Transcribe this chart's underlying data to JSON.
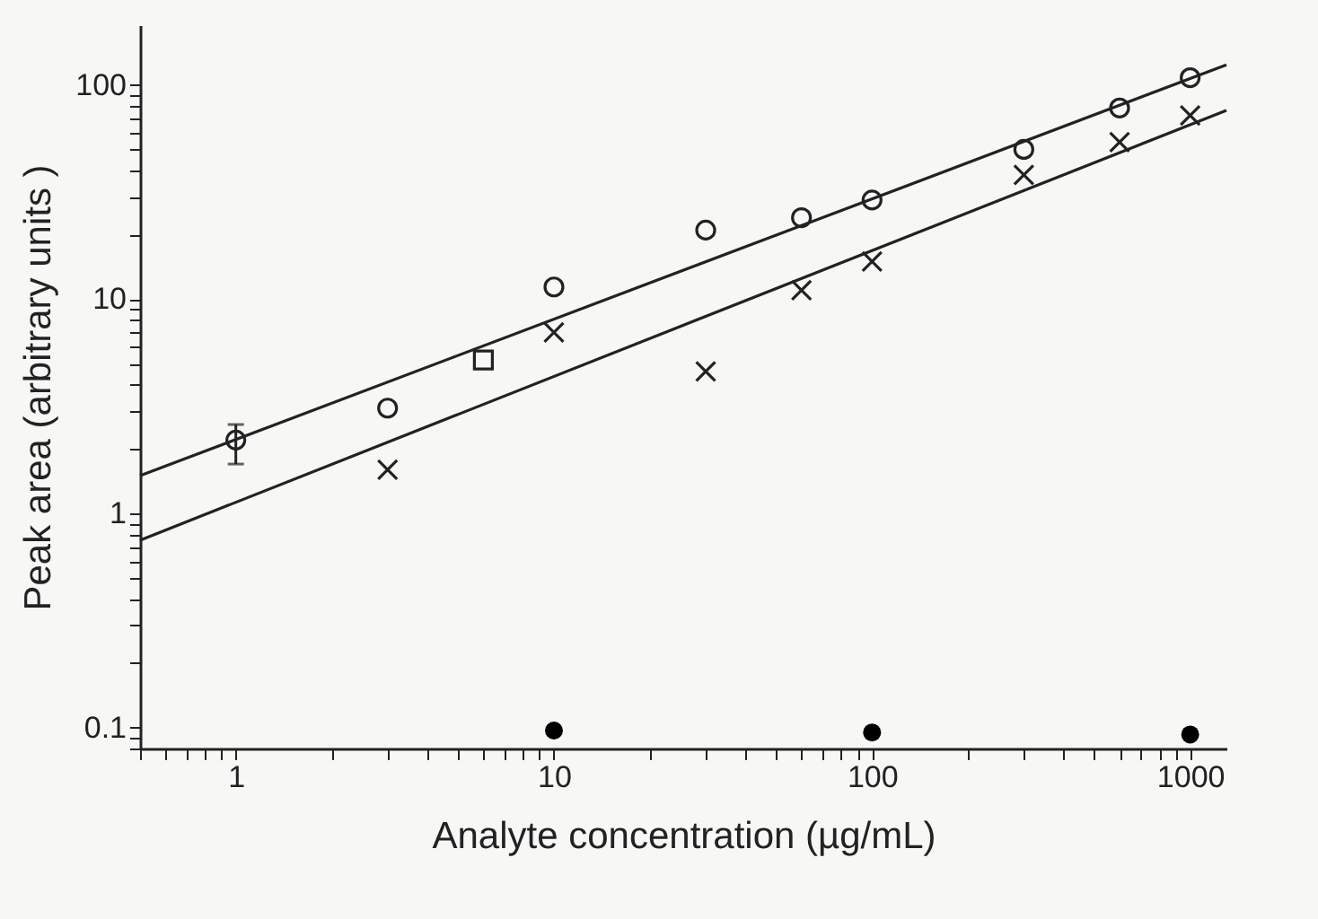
{
  "chart_data": {
    "type": "scatter",
    "xlabel": "Analyte concentration (µg/mL)",
    "ylabel": "Peak area (arbitrary units )",
    "log": "xy",
    "grid": false,
    "xlim": [
      0.5,
      1300
    ],
    "ylim": [
      0.08,
      190
    ],
    "xticks": [
      {
        "value": 0.5,
        "label": null
      },
      {
        "value": 0.6,
        "label": null
      },
      {
        "value": 0.7,
        "label": null
      },
      {
        "value": 0.8,
        "label": null
      },
      {
        "value": 0.9,
        "label": null
      },
      1,
      {
        "value": 2,
        "label": null
      },
      {
        "value": 3,
        "label": null
      },
      {
        "value": 4,
        "label": null
      },
      {
        "value": 5,
        "label": null
      },
      {
        "value": 6,
        "label": null
      },
      {
        "value": 7,
        "label": null
      },
      {
        "value": 8,
        "label": null
      },
      {
        "value": 9,
        "label": null
      },
      10,
      {
        "value": 20,
        "label": null
      },
      {
        "value": 30,
        "label": null
      },
      {
        "value": 40,
        "label": null
      },
      {
        "value": 50,
        "label": null
      },
      {
        "value": 60,
        "label": null
      },
      {
        "value": 70,
        "label": null
      },
      {
        "value": 80,
        "label": null
      },
      {
        "value": 90,
        "label": null
      },
      100,
      {
        "value": 200,
        "label": null
      },
      {
        "value": 300,
        "label": null
      },
      {
        "value": 400,
        "label": null
      },
      {
        "value": 500,
        "label": null
      },
      {
        "value": 600,
        "label": null
      },
      {
        "value": 700,
        "label": null
      },
      {
        "value": 800,
        "label": null
      },
      {
        "value": 900,
        "label": null
      },
      1000
    ],
    "yticks": [
      {
        "value": 0.08,
        "label": null
      },
      {
        "value": 0.09,
        "label": null
      },
      0.1,
      {
        "value": 0.2,
        "label": null
      },
      {
        "value": 0.3,
        "label": null
      },
      {
        "value": 0.4,
        "label": null
      },
      {
        "value": 0.5,
        "label": null
      },
      {
        "value": 0.6,
        "label": null
      },
      {
        "value": 0.7,
        "label": null
      },
      {
        "value": 0.8,
        "label": null
      },
      {
        "value": 0.9,
        "label": null
      },
      1,
      {
        "value": 2,
        "label": null
      },
      {
        "value": 3,
        "label": null
      },
      {
        "value": 4,
        "label": null
      },
      {
        "value": 5,
        "label": null
      },
      {
        "value": 6,
        "label": null
      },
      {
        "value": 7,
        "label": null
      },
      {
        "value": 8,
        "label": null
      },
      {
        "value": 9,
        "label": null
      },
      10,
      {
        "value": 20,
        "label": null
      },
      {
        "value": 30,
        "label": null
      },
      {
        "value": 40,
        "label": null
      },
      {
        "value": 50,
        "label": null
      },
      {
        "value": 60,
        "label": null
      },
      {
        "value": 70,
        "label": null
      },
      {
        "value": 80,
        "label": null
      },
      {
        "value": 90,
        "label": null
      },
      100
    ],
    "series": [
      {
        "type": "line",
        "color": "#222222",
        "marker": "none",
        "line_style": "solid",
        "x": [
          0.5,
          1300
        ],
        "values": [
          1.5,
          124
        ]
      },
      {
        "type": "line",
        "color": "#222222",
        "marker": "none",
        "line_style": "solid",
        "x": [
          0.5,
          1300
        ],
        "values": [
          0.75,
          76
        ]
      },
      {
        "color": "#222222",
        "marker": "circle",
        "x": [
          1,
          3,
          10,
          30,
          60,
          100,
          300,
          600,
          1000
        ],
        "values": [
          2.2,
          3.1,
          11.4,
          21,
          24,
          29,
          50,
          78,
          108
        ],
        "errors": [
          [
            1.7,
            2.6
          ],
          null,
          null,
          null,
          null,
          null,
          null,
          null,
          null
        ]
      },
      {
        "color": "#222222",
        "marker": "cross",
        "x": [
          3,
          10,
          30,
          60,
          100,
          300,
          600,
          1000
        ],
        "values": [
          1.6,
          7.0,
          4.6,
          11,
          15,
          38,
          54,
          72
        ]
      },
      {
        "color": "#222222",
        "marker": "square",
        "x": [
          6
        ],
        "values": [
          5.2
        ]
      },
      {
        "color": "#000000",
        "marker": "circle",
        "x": [
          10,
          100,
          1000
        ],
        "values": [
          0.097,
          0.095,
          0.093
        ]
      }
    ]
  }
}
